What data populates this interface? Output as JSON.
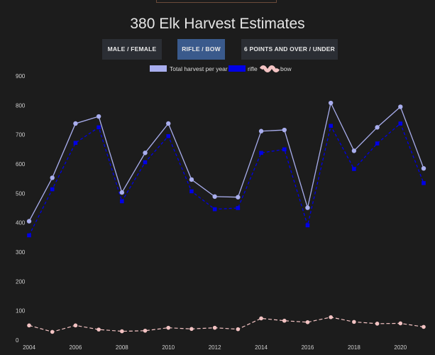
{
  "page": {
    "title": "380 Elk Harvest Estimates"
  },
  "buttons": [
    {
      "label": "MALE / FEMALE",
      "active": false
    },
    {
      "label": "RIFLE / BOW",
      "active": true
    },
    {
      "label": "6 POINTS AND OVER / UNDER",
      "active": false
    }
  ],
  "colors": {
    "total": "#a9aeee",
    "rifle": "#0000e6",
    "bow": "#f3c3c3",
    "background": "#1c1c1c",
    "active_button": "#3a5a8c",
    "button": "#2b2e34"
  },
  "chart_data": {
    "type": "line",
    "x": [
      2004,
      2005,
      2006,
      2007,
      2008,
      2009,
      2010,
      2011,
      2012,
      2013,
      2014,
      2015,
      2016,
      2017,
      2018,
      2019,
      2020,
      2021
    ],
    "x_tick_labels": [
      "2004",
      "2006",
      "2008",
      "2010",
      "2012",
      "2014",
      "2016",
      "2018",
      "2020"
    ],
    "y_tick_labels": [
      "0",
      "100",
      "200",
      "300",
      "400",
      "500",
      "600",
      "700",
      "800",
      "900"
    ],
    "ylim": [
      0,
      900
    ],
    "grid": false,
    "legend_position": "top",
    "series": [
      {
        "name": "Total harvest per year",
        "style": "solid",
        "marker": "circle",
        "values": [
          405,
          553,
          738,
          762,
          503,
          638,
          738,
          547,
          489,
          487,
          712,
          716,
          451,
          808,
          645,
          725,
          795,
          585
        ]
      },
      {
        "name": "rifle",
        "style": "dashed",
        "marker": "square",
        "values": [
          357,
          514,
          672,
          725,
          473,
          606,
          695,
          507,
          446,
          450,
          638,
          650,
          391,
          730,
          583,
          670,
          738,
          535
        ]
      },
      {
        "name": "bow",
        "style": "dashed",
        "marker": "circle",
        "values": [
          50,
          28,
          50,
          36,
          30,
          32,
          42,
          38,
          42,
          37,
          74,
          66,
          61,
          78,
          62,
          56,
          57,
          45
        ]
      }
    ]
  }
}
